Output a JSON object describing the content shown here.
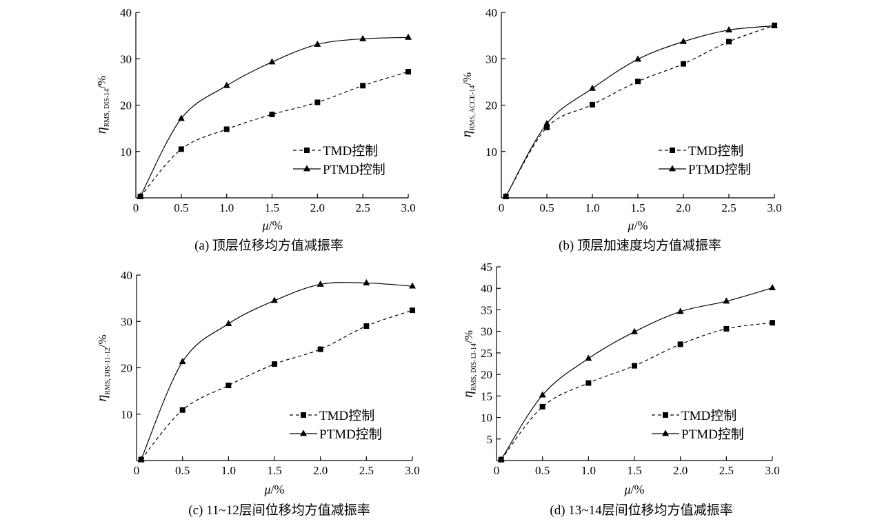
{
  "chart_data": [
    {
      "type": "line",
      "caption": "(a) 顶层位移均方值减振率",
      "ylabel": {
        "symbol": "η",
        "sub": "RMS, DIS-14",
        "unit": "/%"
      },
      "xlabel": {
        "symbol": "μ",
        "unit": "/%"
      },
      "xlim": [
        0,
        3.0
      ],
      "ylim": [
        0,
        40
      ],
      "xticks": [
        0,
        0.5,
        1.0,
        1.5,
        2.0,
        2.5,
        3.0
      ],
      "xtick_labels": [
        "0",
        "0.5",
        "1.0",
        "1.5",
        "2.0",
        "2.5",
        "3.0"
      ],
      "yticks": [
        10,
        20,
        30,
        40
      ],
      "ytick_labels": [
        "10",
        "20",
        "30",
        "40"
      ],
      "legend_placement": "lower-right",
      "series": [
        {
          "name": "TMD控制",
          "marker": "square",
          "style": "dashed",
          "x": [
            0.05,
            0.5,
            1.0,
            1.5,
            2.0,
            2.5,
            3.0
          ],
          "y": [
            0.3,
            10.5,
            14.8,
            18.0,
            20.6,
            24.2,
            27.2
          ]
        },
        {
          "name": "PTMD控制",
          "marker": "triangle",
          "style": "solid",
          "x": [
            0.05,
            0.5,
            1.0,
            1.5,
            2.0,
            2.5,
            3.0
          ],
          "y": [
            0.3,
            17.1,
            24.2,
            29.3,
            33.1,
            34.3,
            34.6
          ]
        }
      ]
    },
    {
      "type": "line",
      "caption": "(b) 顶层加速度均方值减振率",
      "ylabel": {
        "symbol": "η",
        "sub": "RMS, ACCE-14",
        "unit": "/%"
      },
      "xlabel": {
        "symbol": "μ",
        "unit": "/%"
      },
      "xlim": [
        0,
        3.0
      ],
      "ylim": [
        0,
        40
      ],
      "xticks": [
        0,
        0.5,
        1.0,
        1.5,
        2.0,
        2.5,
        3.0
      ],
      "xtick_labels": [
        "0",
        "0.5",
        "1.0",
        "1.5",
        "2.0",
        "2.5",
        "3.0"
      ],
      "yticks": [
        10,
        20,
        30,
        40
      ],
      "ytick_labels": [
        "10",
        "20",
        "30",
        "40"
      ],
      "legend_placement": "lower-right",
      "series": [
        {
          "name": "TMD控制",
          "marker": "square",
          "style": "dashed",
          "x": [
            0.05,
            0.5,
            1.0,
            1.5,
            2.0,
            2.5,
            3.0
          ],
          "y": [
            0.3,
            15.2,
            20.1,
            25.1,
            28.9,
            33.7,
            37.2
          ]
        },
        {
          "name": "PTMD控制",
          "marker": "triangle",
          "style": "solid",
          "x": [
            0.05,
            0.5,
            1.0,
            1.5,
            2.0,
            2.5,
            3.0
          ],
          "y": [
            0.3,
            16.0,
            23.6,
            29.9,
            33.7,
            36.2,
            37.1
          ]
        }
      ]
    },
    {
      "type": "line",
      "caption": "(c) 11~12层间位移均方值减振率",
      "ylabel": {
        "symbol": "η",
        "sub": "RMS, DIS-11-12",
        "unit": "/%"
      },
      "xlabel": {
        "symbol": "μ",
        "unit": "/%"
      },
      "xlim": [
        0,
        3.0
      ],
      "ylim": [
        0,
        40
      ],
      "xticks": [
        0,
        0.5,
        1.0,
        1.5,
        2.0,
        2.5,
        3.0
      ],
      "xtick_labels": [
        "0",
        "0.5",
        "1.0",
        "1.5",
        "2.0",
        "2.5",
        "3.0"
      ],
      "yticks": [
        10,
        20,
        30,
        40
      ],
      "ytick_labels": [
        "10",
        "20",
        "30",
        "40"
      ],
      "legend_placement": "lower-right",
      "series": [
        {
          "name": "TMD控制",
          "marker": "square",
          "style": "dashed",
          "x": [
            0.05,
            0.5,
            1.0,
            1.5,
            2.0,
            2.5,
            3.0
          ],
          "y": [
            0.2,
            10.9,
            16.2,
            20.8,
            24.0,
            29.0,
            32.4
          ]
        },
        {
          "name": "PTMD控制",
          "marker": "triangle",
          "style": "solid",
          "x": [
            0.05,
            0.5,
            1.0,
            1.5,
            2.0,
            2.5,
            3.0
          ],
          "y": [
            0.2,
            21.3,
            29.5,
            34.5,
            38.0,
            38.3,
            37.6
          ]
        }
      ]
    },
    {
      "type": "line",
      "caption": "(d) 13~14层间位移均方值减振率",
      "ylabel": {
        "symbol": "η",
        "sub": "RMS, DIS-13-14",
        "unit": "/%"
      },
      "xlabel": {
        "symbol": "μ",
        "unit": "/%"
      },
      "xlim": [
        0,
        3.0
      ],
      "ylim": [
        0,
        45
      ],
      "xticks": [
        0,
        0.5,
        1.0,
        1.5,
        2.0,
        2.5,
        3.0
      ],
      "xtick_labels": [
        "0",
        "0.5",
        "1.0",
        "1.5",
        "2.0",
        "2.5",
        "3.0"
      ],
      "yticks": [
        5,
        10,
        15,
        20,
        25,
        30,
        35,
        40,
        45
      ],
      "ytick_labels": [
        "5",
        "10",
        "15",
        "20",
        "25",
        "30",
        "35",
        "40",
        "45"
      ],
      "legend_placement": "lower-right",
      "series": [
        {
          "name": "TMD控制",
          "marker": "square",
          "style": "dashed",
          "x": [
            0.05,
            0.5,
            1.0,
            1.5,
            2.0,
            2.5,
            3.0
          ],
          "y": [
            0.2,
            12.5,
            18.0,
            22.0,
            27.0,
            30.6,
            32.0
          ]
        },
        {
          "name": "PTMD控制",
          "marker": "triangle",
          "style": "solid",
          "x": [
            0.05,
            0.5,
            1.0,
            1.5,
            2.0,
            2.5,
            3.0
          ],
          "y": [
            0.2,
            15.2,
            23.7,
            29.9,
            34.6,
            37.0,
            40.1
          ]
        }
      ]
    }
  ]
}
